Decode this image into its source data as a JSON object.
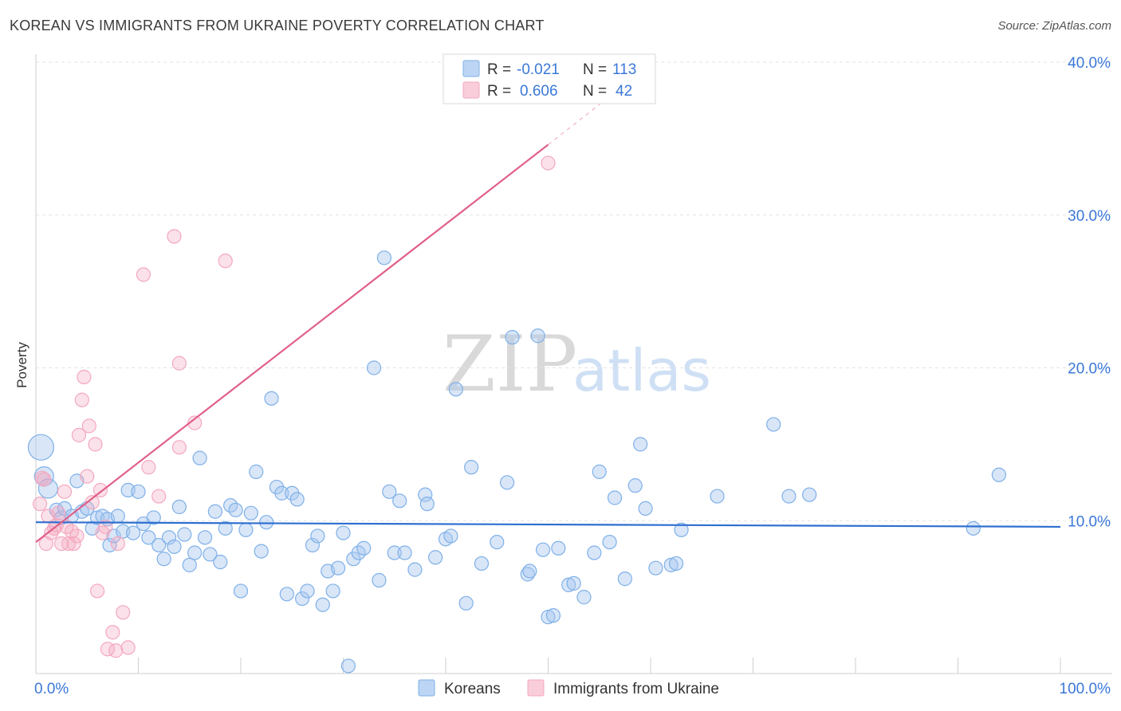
{
  "header": {
    "title": "KOREAN VS IMMIGRANTS FROM UKRAINE POVERTY CORRELATION CHART",
    "source": "Source: ZipAtlas.com"
  },
  "legend_top": {
    "rows": [
      {
        "r_label": "R = ",
        "r_value": "-0.021",
        "n_label": "N = ",
        "n_value": "113",
        "color": "#a8c8f0"
      },
      {
        "r_label": "R = ",
        "r_value": "0.606",
        "n_label": "N = ",
        "n_value": "42",
        "color": "#f4b6c8"
      }
    ]
  },
  "legend_bottom": {
    "items": [
      {
        "label": "Koreans",
        "color": "#a8c8f0"
      },
      {
        "label": "Immigrants from Ukraine",
        "color": "#f4b6c8"
      }
    ]
  },
  "watermark": {
    "zip": "ZIP",
    "atlas": "atlas"
  },
  "chart_data": {
    "type": "scatter",
    "title": "KOREAN VS IMMIGRANTS FROM UKRAINE POVERTY CORRELATION CHART",
    "ylabel": "Poverty",
    "xlabel": "",
    "xlim": [
      0,
      100
    ],
    "ylim": [
      0,
      40
    ],
    "x_tick_labels": [
      {
        "value": 0,
        "label": "0.0%"
      },
      {
        "value": 100,
        "label": "100.0%"
      }
    ],
    "y_tick_labels": [
      {
        "value": 10,
        "label": "10.0%"
      },
      {
        "value": 20,
        "label": "20.0%"
      },
      {
        "value": 30,
        "label": "30.0%"
      },
      {
        "value": 40,
        "label": "40.0%"
      }
    ],
    "grid": true,
    "legend_position": "top-center",
    "series": [
      {
        "name": "Koreans",
        "color": "#7fb0e8",
        "line_color": "#2f6fd0",
        "r": -0.021,
        "n": 113,
        "trend": {
          "x0": 0,
          "y0": 9.9,
          "x1": 100,
          "y1": 9.6
        },
        "points": [
          [
            0.5,
            14.8
          ],
          [
            0.8,
            12.9
          ],
          [
            1.2,
            12.1
          ],
          [
            2.0,
            10.7
          ],
          [
            2.5,
            10.2
          ],
          [
            2.8,
            10.8
          ],
          [
            3.5,
            10.3
          ],
          [
            4.0,
            12.6
          ],
          [
            4.5,
            10.6
          ],
          [
            5.0,
            10.8
          ],
          [
            5.5,
            9.5
          ],
          [
            6.0,
            10.2
          ],
          [
            6.5,
            10.3
          ],
          [
            7.0,
            10.1
          ],
          [
            7.2,
            8.4
          ],
          [
            7.6,
            9.0
          ],
          [
            8.0,
            10.3
          ],
          [
            8.5,
            9.3
          ],
          [
            9.0,
            12.0
          ],
          [
            9.5,
            9.2
          ],
          [
            10.0,
            11.9
          ],
          [
            10.5,
            9.8
          ],
          [
            11.0,
            8.9
          ],
          [
            11.5,
            10.2
          ],
          [
            12.0,
            8.4
          ],
          [
            12.5,
            7.5
          ],
          [
            13.0,
            8.9
          ],
          [
            13.5,
            8.3
          ],
          [
            14.0,
            10.9
          ],
          [
            14.5,
            9.1
          ],
          [
            15.0,
            7.1
          ],
          [
            15.5,
            7.9
          ],
          [
            16.0,
            14.1
          ],
          [
            16.5,
            8.9
          ],
          [
            17.0,
            7.8
          ],
          [
            17.5,
            10.6
          ],
          [
            18.0,
            7.3
          ],
          [
            18.5,
            9.5
          ],
          [
            19.0,
            11.0
          ],
          [
            19.5,
            10.7
          ],
          [
            20.0,
            5.4
          ],
          [
            20.5,
            9.4
          ],
          [
            21.0,
            10.5
          ],
          [
            21.5,
            13.2
          ],
          [
            22.0,
            8.0
          ],
          [
            22.5,
            9.9
          ],
          [
            23.0,
            18.0
          ],
          [
            23.5,
            12.2
          ],
          [
            24.0,
            11.8
          ],
          [
            24.5,
            5.2
          ],
          [
            25.0,
            11.8
          ],
          [
            25.5,
            11.4
          ],
          [
            26.0,
            4.9
          ],
          [
            26.5,
            5.4
          ],
          [
            27.0,
            8.4
          ],
          [
            27.5,
            9.0
          ],
          [
            28.0,
            4.5
          ],
          [
            28.5,
            6.7
          ],
          [
            29.0,
            5.4
          ],
          [
            29.5,
            6.9
          ],
          [
            30.0,
            9.2
          ],
          [
            30.5,
            0.5
          ],
          [
            31.0,
            7.5
          ],
          [
            31.5,
            7.9
          ],
          [
            32.0,
            8.2
          ],
          [
            33.0,
            20.0
          ],
          [
            33.5,
            6.1
          ],
          [
            34.0,
            27.2
          ],
          [
            34.5,
            11.9
          ],
          [
            35.0,
            7.9
          ],
          [
            35.5,
            11.3
          ],
          [
            36.0,
            7.9
          ],
          [
            37.0,
            6.8
          ],
          [
            38.0,
            11.7
          ],
          [
            38.2,
            11.1
          ],
          [
            39.0,
            7.6
          ],
          [
            40.0,
            8.8
          ],
          [
            40.5,
            9.0
          ],
          [
            41.0,
            18.6
          ],
          [
            42.0,
            4.6
          ],
          [
            42.5,
            13.5
          ],
          [
            43.5,
            7.2
          ],
          [
            45.0,
            8.6
          ],
          [
            46.0,
            12.5
          ],
          [
            46.5,
            22.0
          ],
          [
            48.0,
            6.5
          ],
          [
            48.2,
            6.7
          ],
          [
            49.0,
            22.1
          ],
          [
            49.5,
            8.1
          ],
          [
            50.0,
            3.7
          ],
          [
            50.5,
            3.8
          ],
          [
            51.0,
            8.2
          ],
          [
            52.0,
            5.8
          ],
          [
            52.5,
            5.9
          ],
          [
            53.5,
            5.0
          ],
          [
            54.5,
            7.9
          ],
          [
            55.0,
            13.2
          ],
          [
            56.0,
            8.6
          ],
          [
            56.5,
            11.5
          ],
          [
            57.5,
            6.2
          ],
          [
            58.5,
            12.3
          ],
          [
            59.0,
            15.0
          ],
          [
            59.5,
            10.8
          ],
          [
            60.5,
            6.9
          ],
          [
            62.0,
            7.1
          ],
          [
            62.5,
            7.2
          ],
          [
            63.0,
            9.4
          ],
          [
            66.5,
            11.6
          ],
          [
            72.0,
            16.3
          ],
          [
            73.5,
            11.6
          ],
          [
            75.5,
            11.7
          ],
          [
            91.5,
            9.5
          ],
          [
            94.0,
            13.0
          ]
        ],
        "point_sizes": {
          "large": [
            [
              0.5,
              14.8
            ],
            [
              0.8,
              12.9
            ],
            [
              1.2,
              12.1
            ]
          ]
        }
      },
      {
        "name": "Immigrants from Ukraine",
        "color": "#f4a8c0",
        "line_color": "#e0608a",
        "r": 0.606,
        "n": 42,
        "trend": {
          "x0": 0,
          "y0": 8.6,
          "x1": 50,
          "y1": 34.6
        },
        "trend_dashed": {
          "x0": 50,
          "y0": 34.6,
          "x1": 58,
          "y1": 38.8
        },
        "points": [
          [
            0.4,
            11.1
          ],
          [
            0.6,
            12.8
          ],
          [
            0.8,
            12.7
          ],
          [
            1.0,
            8.5
          ],
          [
            1.2,
            10.3
          ],
          [
            1.5,
            9.2
          ],
          [
            1.8,
            9.5
          ],
          [
            2.0,
            9.7
          ],
          [
            2.2,
            10.5
          ],
          [
            2.5,
            8.5
          ],
          [
            2.8,
            11.9
          ],
          [
            3.0,
            9.6
          ],
          [
            3.2,
            8.5
          ],
          [
            3.5,
            9.3
          ],
          [
            3.7,
            8.5
          ],
          [
            4.2,
            15.6
          ],
          [
            4.5,
            17.9
          ],
          [
            4.7,
            19.4
          ],
          [
            5.0,
            12.9
          ],
          [
            5.2,
            16.2
          ],
          [
            5.5,
            11.2
          ],
          [
            5.8,
            15.0
          ],
          [
            6.0,
            5.4
          ],
          [
            6.3,
            12.0
          ],
          [
            6.8,
            9.6
          ],
          [
            7.0,
            1.6
          ],
          [
            7.5,
            2.7
          ],
          [
            7.8,
            1.5
          ],
          [
            8.0,
            8.5
          ],
          [
            8.5,
            4.0
          ],
          [
            9.0,
            1.7
          ],
          [
            10.5,
            26.1
          ],
          [
            11.0,
            13.5
          ],
          [
            12.0,
            11.6
          ],
          [
            13.5,
            28.6
          ],
          [
            14.0,
            20.3
          ],
          [
            14.0,
            14.8
          ],
          [
            15.5,
            16.4
          ],
          [
            18.5,
            27.0
          ],
          [
            50.0,
            33.4
          ],
          [
            6.5,
            9.2
          ],
          [
            4.0,
            9.0
          ]
        ]
      }
    ]
  }
}
